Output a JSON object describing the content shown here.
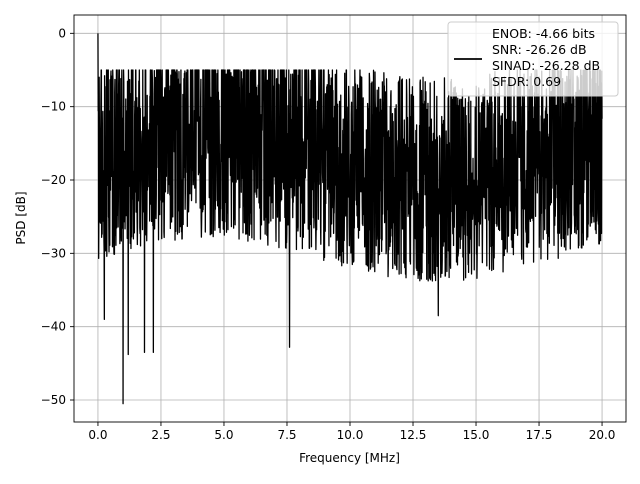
{
  "chart_data": {
    "type": "line",
    "title": "",
    "xlabel": "Frequency [MHz]",
    "ylabel": "PSD [dB]",
    "xlim": [
      -0.95,
      20.95
    ],
    "ylim": [
      -53,
      2.5
    ],
    "xticks": [
      0.0,
      2.5,
      5.0,
      7.5,
      10.0,
      12.5,
      15.0,
      17.5,
      20.0
    ],
    "xtick_labels": [
      "0.0",
      "2.5",
      "5.0",
      "7.5",
      "10.0",
      "12.5",
      "15.0",
      "17.5",
      "20.0"
    ],
    "yticks": [
      0,
      -10,
      -20,
      -30,
      -40,
      -50
    ],
    "ytick_labels": [
      "0",
      "−10",
      "−20",
      "−30",
      "−40",
      "−50"
    ],
    "grid": true,
    "legend_position": "top-right",
    "series": [
      {
        "name": "ENOB: -4.66 bits\nSNR: -26.26 dB\nSINAD: -26.28 dB\nSFDR: 0.69",
        "color": "#000000",
        "x_range": [
          0.0,
          20.0
        ],
        "num_points": 2048,
        "noise_floor_approx_db": -17,
        "spur_peaks": [
          {
            "x": 0.0,
            "y": 0.0
          },
          {
            "x": 0.05,
            "y": -6.0
          }
        ],
        "deep_notches": [
          {
            "x": 0.25,
            "y": -39.0
          },
          {
            "x": 1.0,
            "y": -50.5
          },
          {
            "x": 1.2,
            "y": -43.8
          },
          {
            "x": 1.85,
            "y": -43.5
          },
          {
            "x": 2.2,
            "y": -43.5
          },
          {
            "x": 7.6,
            "y": -42.8
          },
          {
            "x": 13.5,
            "y": -38.5
          }
        ]
      }
    ]
  },
  "legend": {
    "entries": [
      "ENOB: -4.66 bits",
      "SNR: -26.26 dB",
      "SINAD: -26.28 dB",
      "SFDR: 0.69"
    ]
  }
}
